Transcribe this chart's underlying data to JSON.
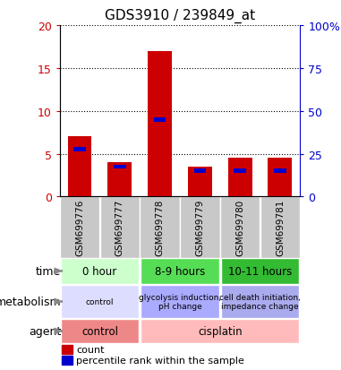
{
  "title": "GDS3910 / 239849_at",
  "samples": [
    "GSM699776",
    "GSM699777",
    "GSM699778",
    "GSM699779",
    "GSM699780",
    "GSM699781"
  ],
  "red_values": [
    7.0,
    4.0,
    17.0,
    3.5,
    4.5,
    4.5
  ],
  "blue_values": [
    5.5,
    3.5,
    9.0,
    3.0,
    3.0,
    3.0
  ],
  "ylim_left": [
    0,
    20
  ],
  "ylim_right": [
    0,
    100
  ],
  "yticks_left": [
    0,
    5,
    10,
    15,
    20
  ],
  "yticks_right": [
    0,
    25,
    50,
    75,
    100
  ],
  "left_tick_labels": [
    "0",
    "5",
    "10",
    "15",
    "20"
  ],
  "right_tick_labels": [
    "0",
    "25",
    "50",
    "75",
    "100%"
  ],
  "bar_color_red": "#cc0000",
  "bar_color_blue": "#0000cc",
  "sample_bg": "#c8c8c8",
  "time_groups": [
    {
      "text": "0 hour",
      "start": 0,
      "end": 1,
      "bg": "#ccffcc"
    },
    {
      "text": "8-9 hours",
      "start": 2,
      "end": 3,
      "bg": "#55dd55"
    },
    {
      "text": "10-11 hours",
      "start": 4,
      "end": 5,
      "bg": "#33bb33"
    }
  ],
  "metabolism_groups": [
    {
      "text": "control",
      "start": 0,
      "end": 1,
      "bg": "#ddddff"
    },
    {
      "text": "glycolysis induction,\npH change",
      "start": 2,
      "end": 3,
      "bg": "#aaaaff"
    },
    {
      "text": "cell death initiation,\nimpedance change",
      "start": 4,
      "end": 5,
      "bg": "#aaaaee"
    }
  ],
  "agent_groups": [
    {
      "text": "control",
      "start": 0,
      "end": 1,
      "bg": "#ee8888"
    },
    {
      "text": "cisplatin",
      "start": 2,
      "end": 5,
      "bg": "#ffbbbb"
    }
  ],
  "legend_red_label": "count",
  "legend_blue_label": "percentile rank within the sample",
  "arrow_color": "#888888"
}
